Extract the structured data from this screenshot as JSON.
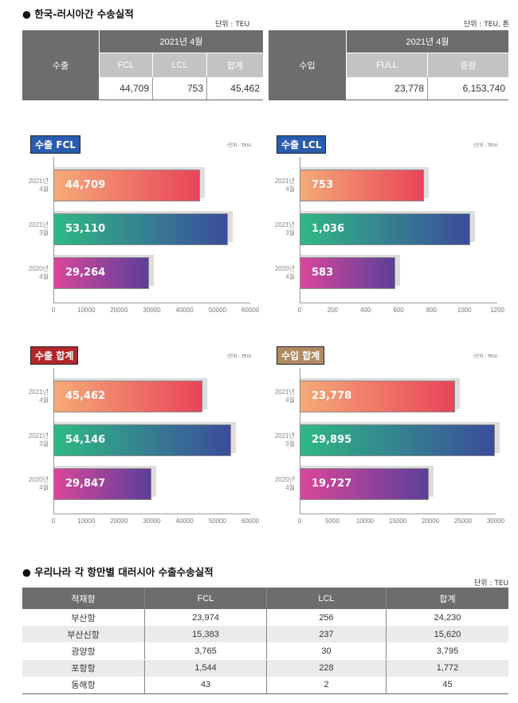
{
  "summary": {
    "title": "● 한국-러시아간 수송실적",
    "export": {
      "unit": "단위 : TEU",
      "row_label": "수출",
      "period": "2021년 4월",
      "columns": [
        "FCL",
        "LCL",
        "합계"
      ],
      "values": [
        "44,709",
        "753",
        "45,462"
      ]
    },
    "import": {
      "unit": "단위 : TEU, 톤",
      "row_label": "수입",
      "period": "2021년 4월",
      "columns": [
        "FULL",
        "중량"
      ],
      "values": [
        "23,778",
        "6,153,740"
      ]
    }
  },
  "chart_data": [
    {
      "type": "bar",
      "orientation": "horizontal",
      "title": "수출 FCL",
      "unit": "(단위 : TEU)",
      "categories": [
        "2021년\n4월",
        "2021년\n3월",
        "2020년\n4월"
      ],
      "values": [
        44709,
        53110,
        29264
      ],
      "labels": [
        "44,709",
        "53,110",
        "29,264"
      ],
      "xlim": [
        0,
        60000
      ],
      "ticks": [
        0,
        10000,
        20000,
        30000,
        40000,
        50000,
        60000
      ],
      "badge_color": "#2a5cb0"
    },
    {
      "type": "bar",
      "orientation": "horizontal",
      "title": "수출 LCL",
      "unit": "(단위 : TEU)",
      "categories": [
        "2021년\n4월",
        "2021년\n3월",
        "2020년\n4월"
      ],
      "values": [
        753,
        1036,
        583
      ],
      "labels": [
        "753",
        "1,036",
        "583"
      ],
      "xlim": [
        0,
        1200
      ],
      "ticks": [
        0,
        200,
        400,
        600,
        800,
        1000,
        1200
      ],
      "badge_color": "#2a5cb0"
    },
    {
      "type": "bar",
      "orientation": "horizontal",
      "title": "수출 합계",
      "unit": "(단위 : TEU)",
      "categories": [
        "2021년\n4월",
        "2021년\n3월",
        "2020년\n4월"
      ],
      "values": [
        45462,
        54146,
        29847
      ],
      "labels": [
        "45,462",
        "54,146",
        "29,847"
      ],
      "xlim": [
        0,
        60000
      ],
      "ticks": [
        0,
        10000,
        20000,
        30000,
        40000,
        50000,
        60000
      ],
      "badge_color": "#b3262a"
    },
    {
      "type": "bar",
      "orientation": "horizontal",
      "title": "수입 합계",
      "unit": "(단위 : TEU)",
      "categories": [
        "2021년\n4월",
        "2021년\n3월",
        "2020년\n4월"
      ],
      "values": [
        23778,
        29895,
        19727
      ],
      "labels": [
        "23,778",
        "29,895",
        "19,727"
      ],
      "xlim": [
        0,
        30000
      ],
      "ticks": [
        0,
        5000,
        10000,
        15000,
        20000,
        25000,
        30000
      ],
      "badge_color": "#b08a62"
    }
  ],
  "bar_gradients": [
    [
      "#f5aa78",
      "#e84458"
    ],
    [
      "#2fb984",
      "#3b4c9c"
    ],
    [
      "#da479b",
      "#5b3f99"
    ]
  ],
  "ports": {
    "title": "● 우리나라 각 항만별 대러시아 수출수송실적",
    "unit": "단위 : TEU",
    "headers": [
      "적재항",
      "FCL",
      "LCL",
      "합계"
    ],
    "rows": [
      [
        "부산항",
        "23,974",
        "256",
        "24,230"
      ],
      [
        "부산신항",
        "15,383",
        "237",
        "15,620"
      ],
      [
        "광양항",
        "3,765",
        "30",
        "3,795"
      ],
      [
        "포항항",
        "1,544",
        "228",
        "1,772"
      ],
      [
        "동해항",
        "43",
        "2",
        "45"
      ]
    ]
  }
}
